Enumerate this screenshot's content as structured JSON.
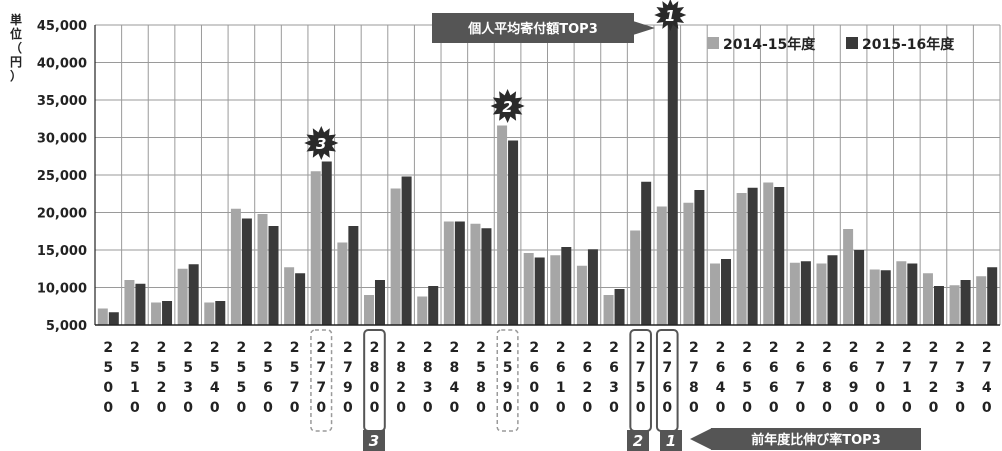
{
  "chart_data": {
    "type": "bar",
    "unit_label": "単位（円）",
    "ylim": [
      5000,
      45000
    ],
    "yticks": [
      "5,000",
      "10,000",
      "15,000",
      "20,000",
      "25,000",
      "30,000",
      "35,000",
      "40,000",
      "45,000"
    ],
    "ytick_values": [
      5000,
      10000,
      15000,
      20000,
      25000,
      30000,
      35000,
      40000,
      45000
    ],
    "grid": true,
    "legend_position": "top-right",
    "categories": [
      "2500",
      "2510",
      "2520",
      "2530",
      "2540",
      "2550",
      "2560",
      "2570",
      "2770",
      "2790",
      "2800",
      "2820",
      "2830",
      "2840",
      "2580",
      "2590",
      "2600",
      "2610",
      "2620",
      "2630",
      "2750",
      "2760",
      "2780",
      "2640",
      "2650",
      "2660",
      "2670",
      "2680",
      "2690",
      "2700",
      "2710",
      "2720",
      "2730",
      "2740"
    ],
    "series": [
      {
        "name": "2014-15年度",
        "color": "#a6a6a6",
        "values": [
          7200,
          11000,
          8000,
          12500,
          8000,
          20500,
          19800,
          12700,
          25500,
          16000,
          9000,
          23200,
          8800,
          18800,
          18500,
          31600,
          14600,
          14300,
          12900,
          9000,
          17600,
          20800,
          21300,
          13200,
          22600,
          24000,
          13300,
          13200,
          17800,
          12400,
          13500,
          11900,
          10300,
          11500
        ]
      },
      {
        "name": "2015-16年度",
        "color": "#3a3a3a",
        "values": [
          6700,
          10500,
          8200,
          13100,
          8200,
          19200,
          18200,
          11900,
          26800,
          18200,
          11000,
          24800,
          10200,
          18800,
          17900,
          29600,
          14000,
          15400,
          15100,
          9800,
          24100,
          47000,
          23000,
          13800,
          23300,
          23400,
          13500,
          14300,
          15000,
          12300,
          13200,
          10200,
          11000,
          12700
        ]
      }
    ],
    "annotations": {
      "top_avg_title": "個人平均寄付額TOP3",
      "growth_title": "前年度比伸び率TOP3",
      "avg_rank_1": "1",
      "avg_rank_2": "2",
      "avg_rank_3": "3",
      "growth_rank_1": "1",
      "growth_rank_2": "2",
      "growth_rank_3": "3"
    }
  }
}
